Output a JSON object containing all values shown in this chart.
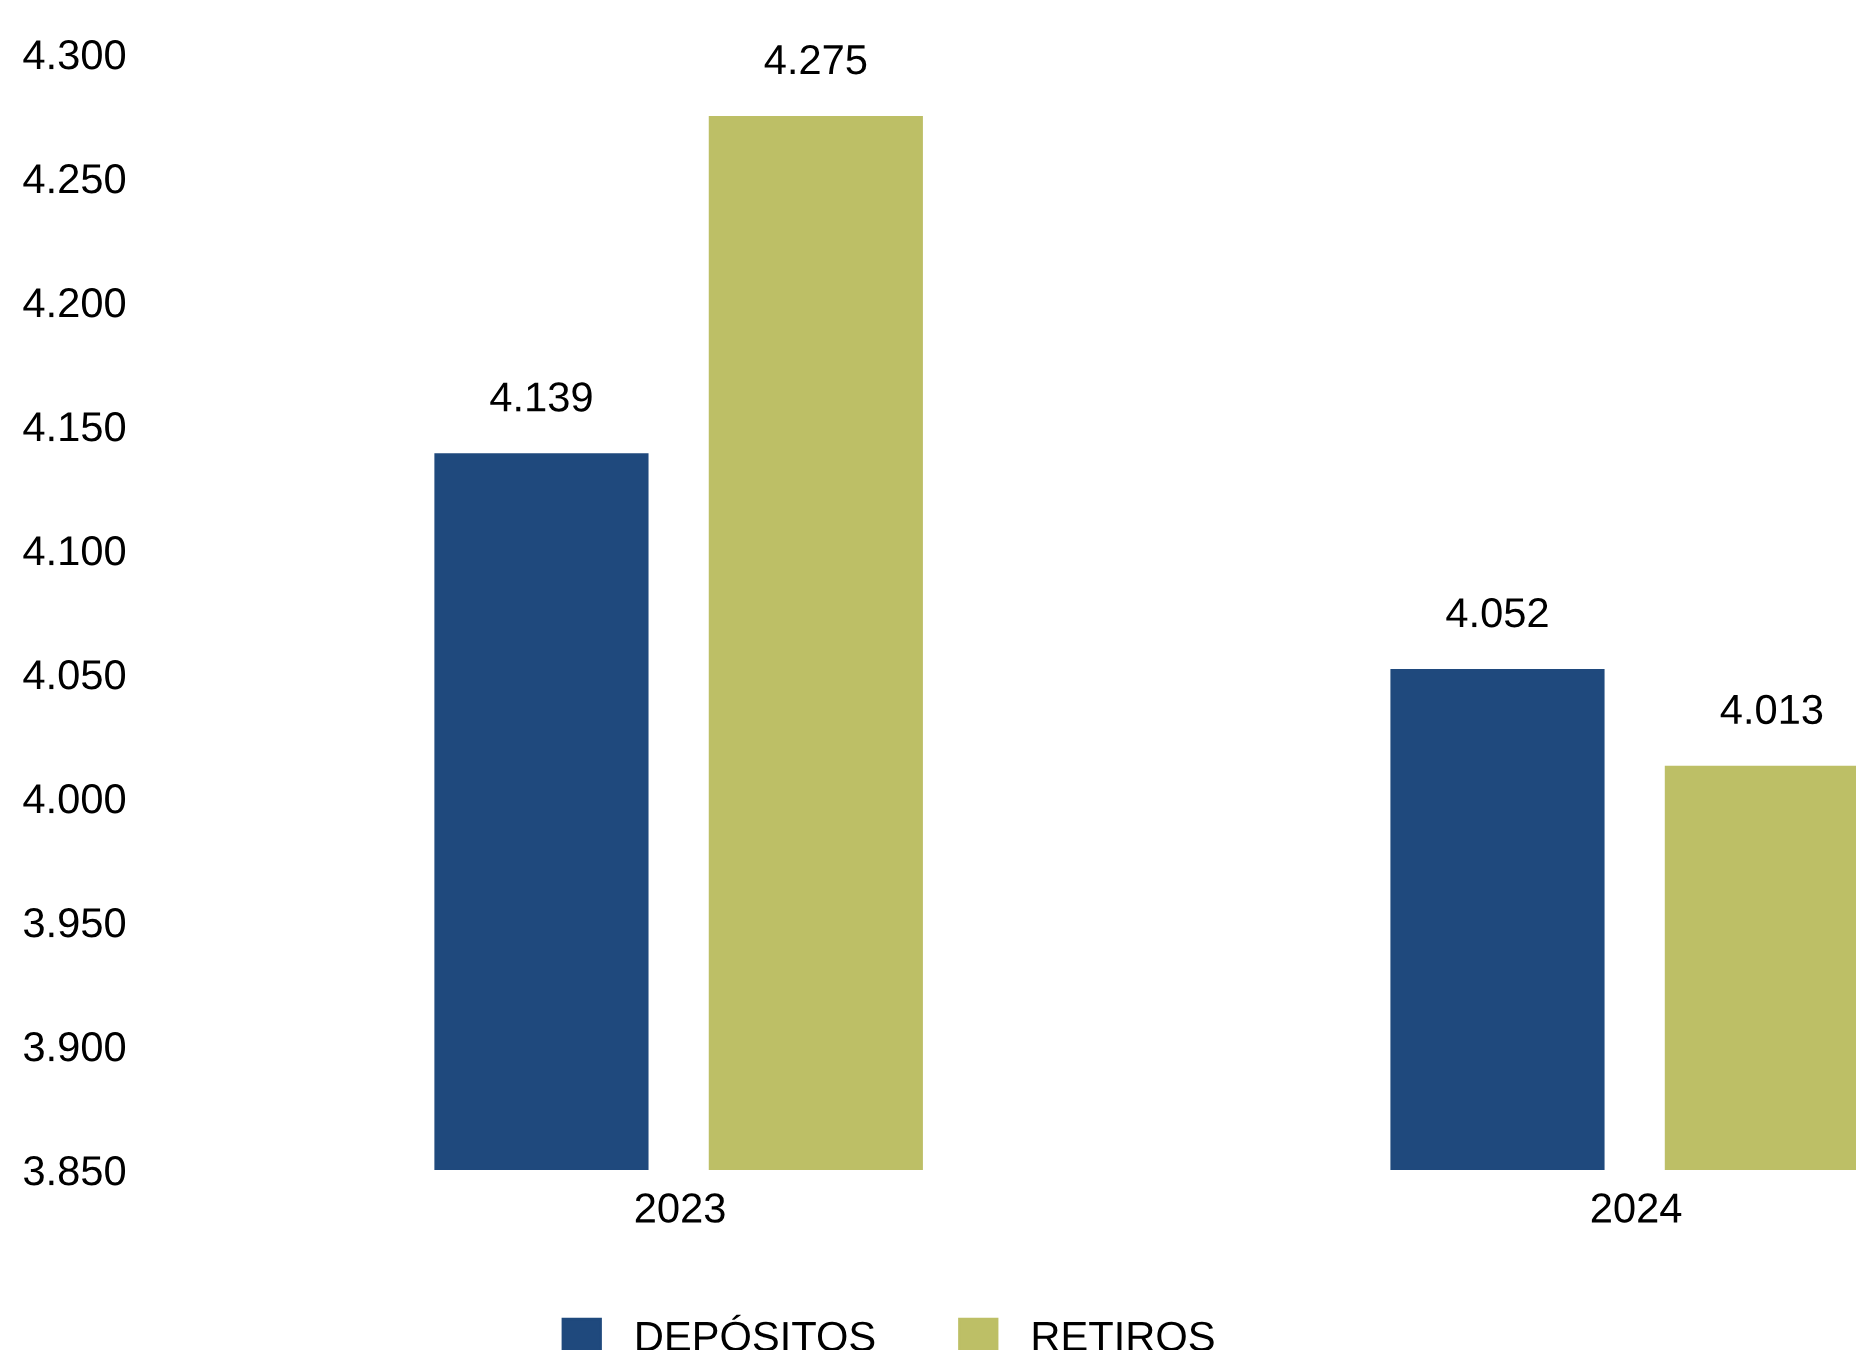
{
  "chart_data": {
    "type": "bar",
    "categories": [
      "2023",
      "2024"
    ],
    "series": [
      {
        "name": "DEPÓSITOS",
        "color": "#1f497d",
        "values": [
          4139,
          4052
        ],
        "value_labels": [
          "4.139",
          "4.052"
        ]
      },
      {
        "name": "RETIROS",
        "color": "#bdbf66",
        "values": [
          4275,
          4013
        ],
        "value_labels": [
          "4.275",
          "4.013"
        ]
      }
    ],
    "ylim": [
      3850,
      4300
    ],
    "yticks": [
      {
        "value": 3850,
        "label": "3.850"
      },
      {
        "value": 3900,
        "label": "3.900"
      },
      {
        "value": 3950,
        "label": "3.950"
      },
      {
        "value": 4000,
        "label": "4.000"
      },
      {
        "value": 4050,
        "label": "4.050"
      },
      {
        "value": 4100,
        "label": "4.100"
      },
      {
        "value": 4150,
        "label": "4.150"
      },
      {
        "value": 4200,
        "label": "4.200"
      },
      {
        "value": 4250,
        "label": "4.250"
      },
      {
        "value": 4300,
        "label": "4.300"
      }
    ],
    "grid": false,
    "legend": "bottom"
  }
}
